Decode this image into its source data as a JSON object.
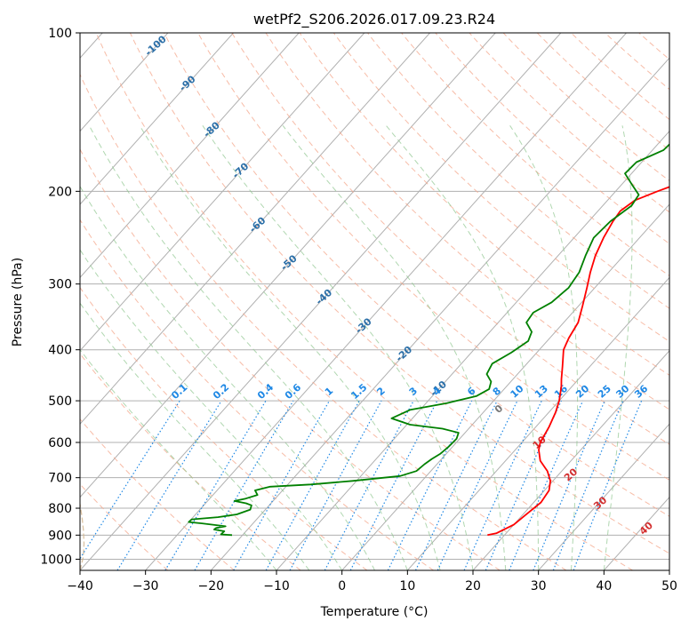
{
  "chart_data": {
    "type": "line",
    "subtype": "skew-t log-p diagram",
    "title": "wetPf2_S206.2026.017.09.23.R24",
    "xlabel": "Temperature (°C)",
    "ylabel": "Pressure (hPa)",
    "xlim": [
      -40,
      50
    ],
    "ylim": [
      1050,
      100
    ],
    "y_scale": "log",
    "x_ticks": [
      -40,
      -30,
      -20,
      -10,
      0,
      10,
      20,
      30,
      40,
      50
    ],
    "y_ticks": [
      100,
      200,
      300,
      400,
      500,
      600,
      700,
      800,
      900,
      1000
    ],
    "grid": true,
    "series": [
      {
        "color": "#ff0000",
        "points": [
          [
            17.4,
            900
          ],
          [
            18.5,
            893
          ],
          [
            20.0,
            860
          ],
          [
            20.5,
            820
          ],
          [
            21.1,
            780
          ],
          [
            20.7,
            740
          ],
          [
            19.6,
            710
          ],
          [
            17.8,
            680
          ],
          [
            15.3,
            650
          ],
          [
            13.6,
            620
          ],
          [
            12.8,
            600
          ],
          [
            12.0,
            560
          ],
          [
            11.0,
            525
          ],
          [
            10.0,
            500
          ],
          [
            8.4,
            470
          ],
          [
            7.4,
            455
          ],
          [
            5.8,
            430
          ],
          [
            3.7,
            400
          ],
          [
            2.9,
            380
          ],
          [
            2.2,
            355
          ],
          [
            0.6,
            330
          ],
          [
            -1.2,
            305
          ],
          [
            -2.8,
            285
          ],
          [
            -4.3,
            265
          ],
          [
            -5.5,
            245
          ],
          [
            -6.3,
            228
          ],
          [
            -6.6,
            218
          ],
          [
            -5.8,
            208
          ],
          [
            -3.6,
            200
          ],
          [
            -1.0,
            192
          ],
          [
            1.7,
            184
          ],
          [
            4.0,
            173
          ],
          [
            6.4,
            160
          ],
          [
            8.8,
            150
          ],
          [
            13.0,
            140
          ],
          [
            16.5,
            131
          ],
          [
            19.6,
            124
          ],
          [
            21.6,
            120
          ],
          [
            22.3,
            115
          ],
          [
            22.5,
            108
          ],
          [
            22.6,
            100
          ]
        ]
      },
      {
        "color": "#008000",
        "points": [
          [
            -21.6,
            900
          ],
          [
            -23.4,
            897
          ],
          [
            -23.3,
            885
          ],
          [
            -25.1,
            878
          ],
          [
            -25.0,
            872
          ],
          [
            -23.8,
            866
          ],
          [
            -27.8,
            855
          ],
          [
            -30.0,
            850
          ],
          [
            -29.9,
            840
          ],
          [
            -26.2,
            832
          ],
          [
            -23.7,
            822
          ],
          [
            -22.3,
            805
          ],
          [
            -22.7,
            790
          ],
          [
            -23.8,
            783
          ],
          [
            -25.9,
            775
          ],
          [
            -24.5,
            767
          ],
          [
            -23.2,
            755
          ],
          [
            -24.2,
            740
          ],
          [
            -22.4,
            728
          ],
          [
            -16.5,
            721
          ],
          [
            -10.6,
            710
          ],
          [
            -4.0,
            695
          ],
          [
            -2.2,
            680
          ],
          [
            -1.9,
            660
          ],
          [
            -1.5,
            645
          ],
          [
            -0.9,
            630
          ],
          [
            -0.6,
            610
          ],
          [
            -0.5,
            590
          ],
          [
            -1.0,
            575
          ],
          [
            -4.0,
            565
          ],
          [
            -9.5,
            555
          ],
          [
            -13.2,
            540
          ],
          [
            -11.5,
            520
          ],
          [
            -6.8,
            505
          ],
          [
            -3.3,
            490
          ],
          [
            -2.3,
            475
          ],
          [
            -3.0,
            460
          ],
          [
            -4.7,
            445
          ],
          [
            -5.3,
            425
          ],
          [
            -3.9,
            405
          ],
          [
            -2.9,
            385
          ],
          [
            -3.6,
            370
          ],
          [
            -5.7,
            355
          ],
          [
            -6.0,
            340
          ],
          [
            -4.6,
            325
          ],
          [
            -4.0,
            305
          ],
          [
            -4.5,
            285
          ],
          [
            -5.8,
            265
          ],
          [
            -7.0,
            245
          ],
          [
            -6.7,
            228
          ],
          [
            -5.6,
            213
          ],
          [
            -6.0,
            203
          ],
          [
            -8.2,
            195
          ],
          [
            -11.0,
            185
          ],
          [
            -10.8,
            176
          ],
          [
            -8.3,
            167
          ],
          [
            -8.1,
            160
          ],
          [
            -8.6,
            153
          ],
          [
            -9.4,
            145
          ],
          [
            -9.5,
            137
          ],
          [
            -8.3,
            130
          ],
          [
            -6.8,
            123
          ],
          [
            -6.0,
            116
          ],
          [
            -5.0,
            108
          ],
          [
            -4.0,
            100
          ]
        ]
      }
    ],
    "annotations": {
      "dry_adiabats": [
        "-100",
        "-90",
        "-80",
        "-70",
        "-60",
        "-50",
        "-40",
        "-30",
        "-20",
        "-10"
      ],
      "mixing_ratios": [
        "0.1",
        "0.2",
        "0.4",
        "0.6",
        "1",
        "1.5",
        "2",
        "3",
        "4",
        "6",
        "8",
        "10",
        "13",
        "16",
        "20",
        "25",
        "30",
        "36"
      ],
      "moist_adiabats": [
        "0",
        "10",
        "20",
        "30",
        "40"
      ]
    }
  }
}
